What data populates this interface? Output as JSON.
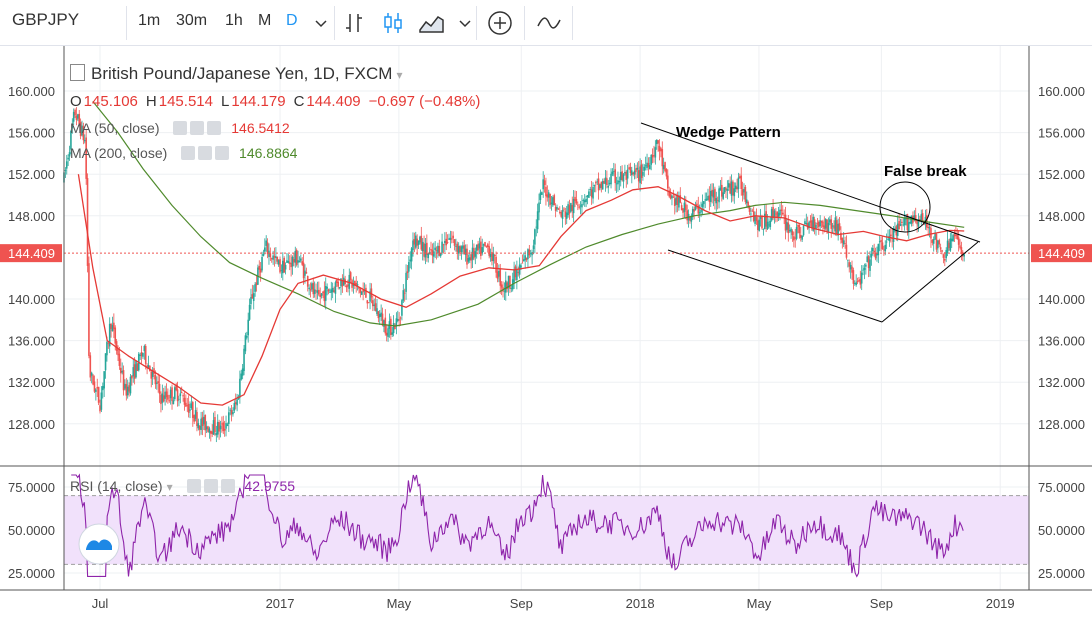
{
  "toolbar": {
    "symbol": "GBPJPY",
    "intervals": [
      "1m",
      "30m",
      "1h",
      "M",
      "D"
    ],
    "active_interval": "D",
    "icons": [
      "chevron-down-icon",
      "bar-style-icon",
      "candle-style-icon",
      "area-style-icon",
      "chevron-down-icon",
      "compare-plus-icon",
      "indicators-icon"
    ]
  },
  "legend": {
    "title": "British Pound/Japanese Yen, 1D, FXCM",
    "open_key": "O",
    "open": "145.106",
    "high_key": "H",
    "high": "145.514",
    "low_key": "L",
    "low": "144.179",
    "close_key": "C",
    "close": "144.409",
    "change": "−0.697 (−0.48%)",
    "ma50_label": "MA (50, close)",
    "ma50_value": "146.5412",
    "ma200_label": "MA (200, close)",
    "ma200_value": "146.8864",
    "rsi_label": "RSI (14, close)",
    "rsi_value": "42.9755"
  },
  "colors": {
    "up": "#26a69a",
    "down": "#ef5350",
    "ma50": "#e53935",
    "ma200": "#4f8a2c",
    "rsi": "#8e24aa",
    "rsi_band": "#f1e1fb",
    "last_price": "#ef5350"
  },
  "chart_data": [
    {
      "type": "candlestick",
      "title": "British Pound/Japanese Yen, 1D, FXCM",
      "y_ticks": [
        "160.000",
        "156.000",
        "152.000",
        "148.000",
        "144.409",
        "140.000",
        "136.000",
        "132.000",
        "128.000"
      ],
      "x_ticks": [
        "Jul",
        "2017",
        "May",
        "Sep",
        "2018",
        "May",
        "Sep",
        "2019"
      ],
      "ylim": [
        124.5,
        164.5
      ],
      "last_price": 144.409,
      "series": [
        {
          "name": "MA (50, close)",
          "values": [
            [
              2016.44,
              152.0
            ],
            [
              2016.48,
              143.0
            ],
            [
              2016.52,
              136.0
            ],
            [
              2016.58,
              134.5
            ],
            [
              2016.65,
              133.0
            ],
            [
              2016.72,
              131.5
            ],
            [
              2016.78,
              130.0
            ],
            [
              2016.84,
              129.8
            ],
            [
              2016.9,
              130.8
            ],
            [
              2016.95,
              134.5
            ],
            [
              2017.0,
              139.0
            ],
            [
              2017.05,
              141.5
            ],
            [
              2017.12,
              142.3
            ],
            [
              2017.2,
              141.5
            ],
            [
              2017.28,
              140.0
            ],
            [
              2017.35,
              139.2
            ],
            [
              2017.42,
              140.5
            ],
            [
              2017.5,
              142.2
            ],
            [
              2017.58,
              143.0
            ],
            [
              2017.65,
              142.8
            ],
            [
              2017.72,
              143.2
            ],
            [
              2017.78,
              146.0
            ],
            [
              2017.85,
              148.5
            ],
            [
              2017.92,
              149.5
            ],
            [
              2017.98,
              150.5
            ],
            [
              2018.05,
              150.8
            ],
            [
              2018.1,
              150.0
            ],
            [
              2018.18,
              148.5
            ],
            [
              2018.25,
              147.5
            ],
            [
              2018.32,
              148.0
            ],
            [
              2018.4,
              147.8
            ],
            [
              2018.48,
              146.8
            ],
            [
              2018.55,
              146.2
            ],
            [
              2018.62,
              146.5
            ],
            [
              2018.68,
              146.0
            ],
            [
              2018.74,
              145.6
            ],
            [
              2018.8,
              146.2
            ],
            [
              2018.86,
              146.6
            ],
            [
              2018.9,
              146.54
            ]
          ]
        },
        {
          "name": "MA (200, close)",
          "values": [
            [
              2016.48,
              159.0
            ],
            [
              2016.55,
              156.0
            ],
            [
              2016.62,
              152.5
            ],
            [
              2016.7,
              149.0
            ],
            [
              2016.78,
              146.0
            ],
            [
              2016.86,
              143.5
            ],
            [
              2016.95,
              142.0
            ],
            [
              2017.05,
              140.5
            ],
            [
              2017.15,
              138.8
            ],
            [
              2017.25,
              137.7
            ],
            [
              2017.32,
              137.4
            ],
            [
              2017.42,
              138.0
            ],
            [
              2017.55,
              139.5
            ],
            [
              2017.65,
              141.5
            ],
            [
              2017.75,
              143.3
            ],
            [
              2017.85,
              145.0
            ],
            [
              2017.95,
              146.2
            ],
            [
              2018.05,
              147.2
            ],
            [
              2018.15,
              148.0
            ],
            [
              2018.25,
              148.5
            ],
            [
              2018.32,
              149.0
            ],
            [
              2018.4,
              149.3
            ],
            [
              2018.5,
              149.0
            ],
            [
              2018.6,
              148.5
            ],
            [
              2018.7,
              148.0
            ],
            [
              2018.8,
              147.4
            ],
            [
              2018.9,
              146.89
            ]
          ]
        }
      ]
    },
    {
      "type": "line",
      "title": "RSI (14, close)",
      "y_ticks": [
        "75.0000",
        "50.0000",
        "25.0000"
      ],
      "ylim": [
        21,
        85
      ],
      "band": [
        30,
        70
      ],
      "series": [
        {
          "name": "RSI (14, close)",
          "values": []
        }
      ]
    }
  ],
  "annotations": {
    "wedge_label": "Wedge Pattern",
    "false_break_label": "False break"
  }
}
